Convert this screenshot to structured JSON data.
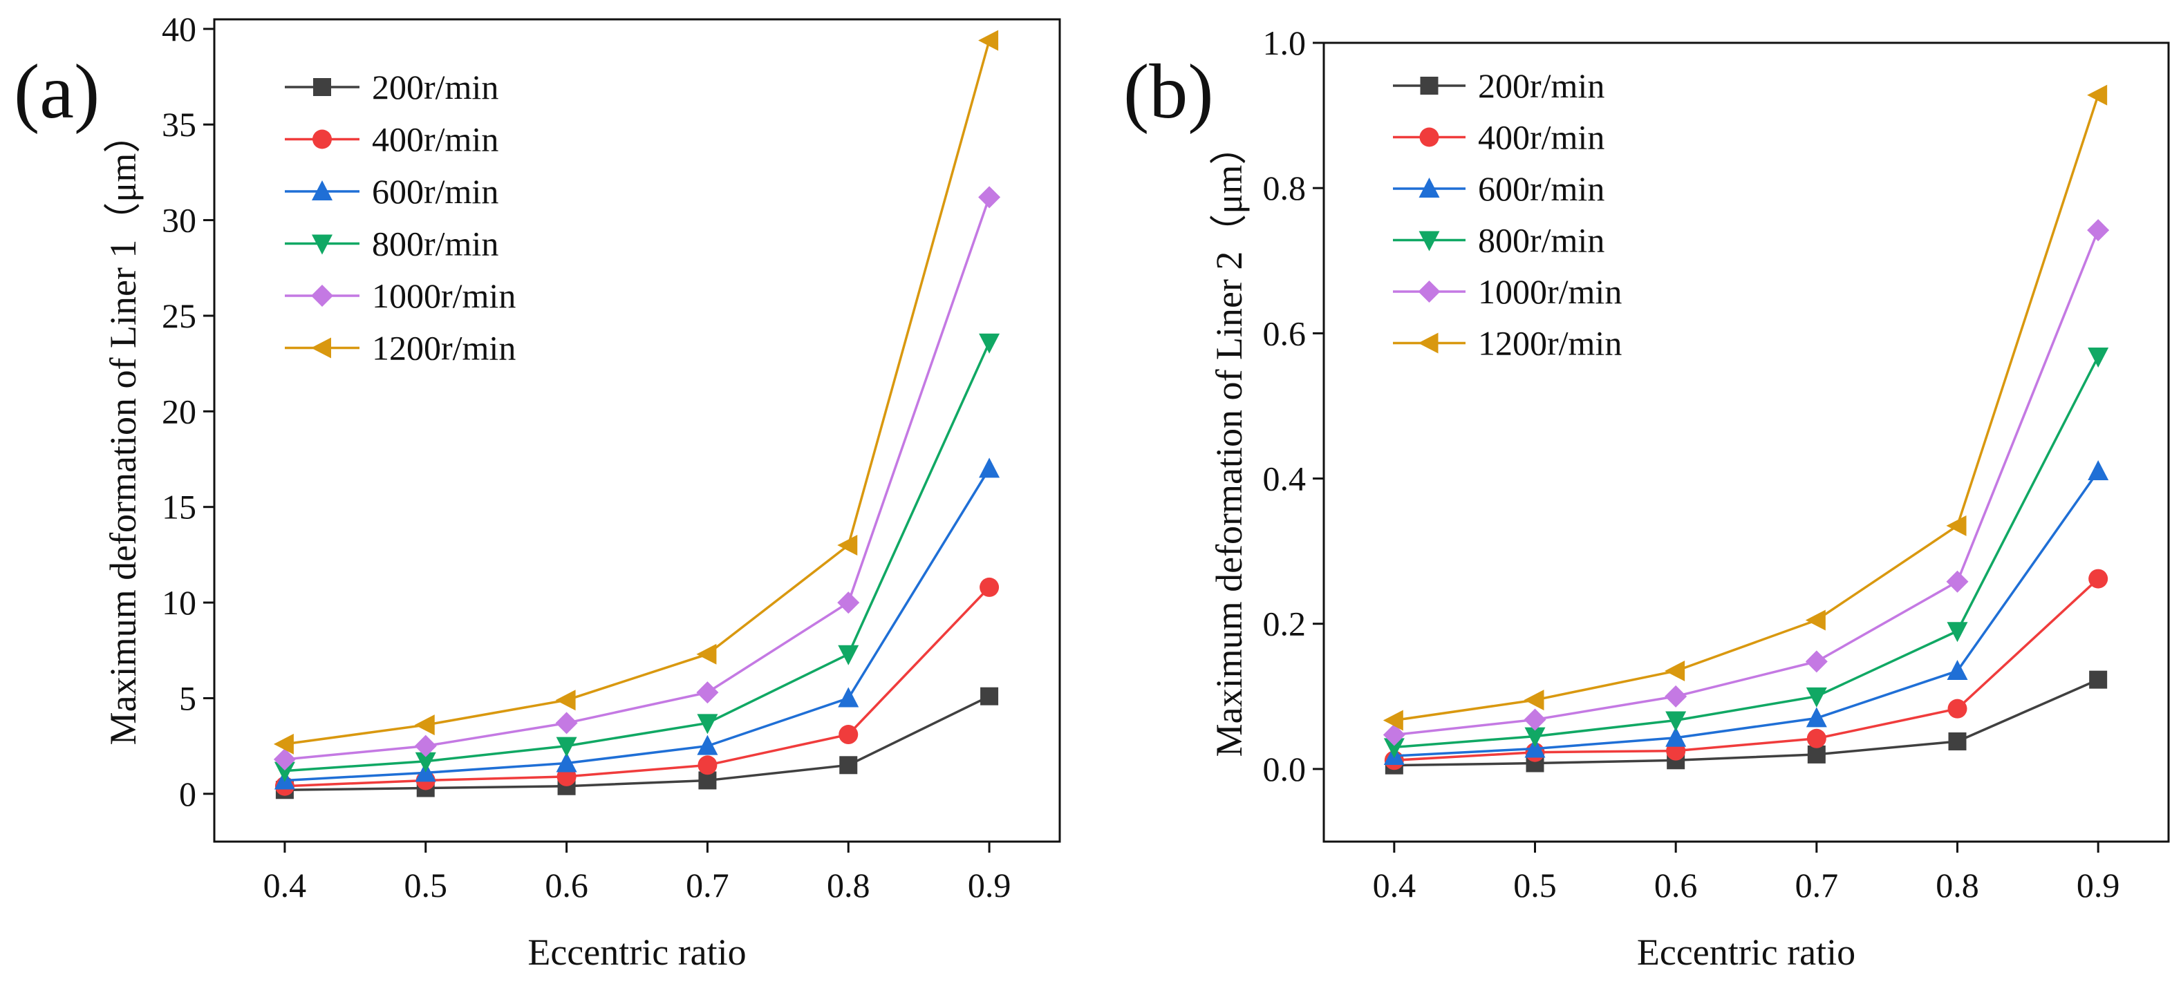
{
  "chart_data": [
    {
      "type": "line",
      "panel_label": "(a)",
      "xlabel": "Eccentric ratio",
      "ylabel": "Maximum deformation of Liner 1（μm）",
      "x": [
        0.4,
        0.5,
        0.6,
        0.7,
        0.8,
        0.9
      ],
      "x_ticks": [
        0.4,
        0.5,
        0.6,
        0.7,
        0.8,
        0.9
      ],
      "x_tick_labels": [
        "0.4",
        "0.5",
        "0.6",
        "0.7",
        "0.8",
        "0.9"
      ],
      "xlim": [
        0.35,
        0.95
      ],
      "y_ticks": [
        0,
        5,
        10,
        15,
        20,
        25,
        30,
        35,
        40
      ],
      "y_tick_labels": [
        "0",
        "5",
        "10",
        "15",
        "20",
        "25",
        "30",
        "35",
        "40"
      ],
      "ylim": [
        -2.5,
        40.5
      ],
      "legend_position": "top-left",
      "series": [
        {
          "name": "200r/min",
          "marker": "square",
          "color": "#404040",
          "values": [
            0.2,
            0.3,
            0.4,
            0.7,
            1.5,
            5.1
          ]
        },
        {
          "name": "400r/min",
          "marker": "circle",
          "color": "#f03c3c",
          "values": [
            0.4,
            0.7,
            0.9,
            1.5,
            3.1,
            10.8
          ]
        },
        {
          "name": "600r/min",
          "marker": "triangle-up",
          "color": "#1f6fd6",
          "values": [
            0.7,
            1.1,
            1.6,
            2.5,
            5.0,
            17.0
          ]
        },
        {
          "name": "800r/min",
          "marker": "triangle-down",
          "color": "#10a864",
          "values": [
            1.2,
            1.7,
            2.5,
            3.7,
            7.3,
            23.6
          ]
        },
        {
          "name": "1000r/min",
          "marker": "diamond",
          "color": "#c479e3",
          "values": [
            1.8,
            2.5,
            3.7,
            5.3,
            10.0,
            31.2
          ]
        },
        {
          "name": "1200r/min",
          "marker": "triangle-left",
          "color": "#d9980f",
          "values": [
            2.6,
            3.6,
            4.9,
            7.3,
            13.0,
            39.4
          ]
        }
      ]
    },
    {
      "type": "line",
      "panel_label": "(b)",
      "xlabel": "Eccentric ratio",
      "ylabel": "Maximum deformation of Liner 2（μm）",
      "x": [
        0.4,
        0.5,
        0.6,
        0.7,
        0.8,
        0.9
      ],
      "x_ticks": [
        0.4,
        0.5,
        0.6,
        0.7,
        0.8,
        0.9
      ],
      "x_tick_labels": [
        "0.4",
        "0.5",
        "0.6",
        "0.7",
        "0.8",
        "0.9"
      ],
      "xlim": [
        0.35,
        0.95
      ],
      "y_ticks": [
        0.0,
        0.2,
        0.4,
        0.6,
        0.8,
        1.0
      ],
      "y_tick_labels": [
        "0.0",
        "0.2",
        "0.4",
        "0.6",
        "0.8",
        "1.0"
      ],
      "ylim": [
        -0.1,
        1.0
      ],
      "legend_position": "top-left",
      "series": [
        {
          "name": "200r/min",
          "marker": "square",
          "color": "#404040",
          "values": [
            0.005,
            0.008,
            0.012,
            0.02,
            0.038,
            0.123
          ]
        },
        {
          "name": "400r/min",
          "marker": "circle",
          "color": "#f03c3c",
          "values": [
            0.012,
            0.023,
            0.025,
            0.042,
            0.083,
            0.262
          ]
        },
        {
          "name": "600r/min",
          "marker": "triangle-up",
          "color": "#1f6fd6",
          "values": [
            0.018,
            0.028,
            0.043,
            0.07,
            0.135,
            0.41
          ]
        },
        {
          "name": "800r/min",
          "marker": "triangle-down",
          "color": "#10a864",
          "values": [
            0.03,
            0.045,
            0.067,
            0.1,
            0.19,
            0.568
          ]
        },
        {
          "name": "1000r/min",
          "marker": "diamond",
          "color": "#c479e3",
          "values": [
            0.047,
            0.068,
            0.1,
            0.148,
            0.258,
            0.742
          ]
        },
        {
          "name": "1200r/min",
          "marker": "triangle-left",
          "color": "#d9980f",
          "values": [
            0.067,
            0.095,
            0.135,
            0.205,
            0.335,
            0.928
          ]
        }
      ]
    }
  ]
}
